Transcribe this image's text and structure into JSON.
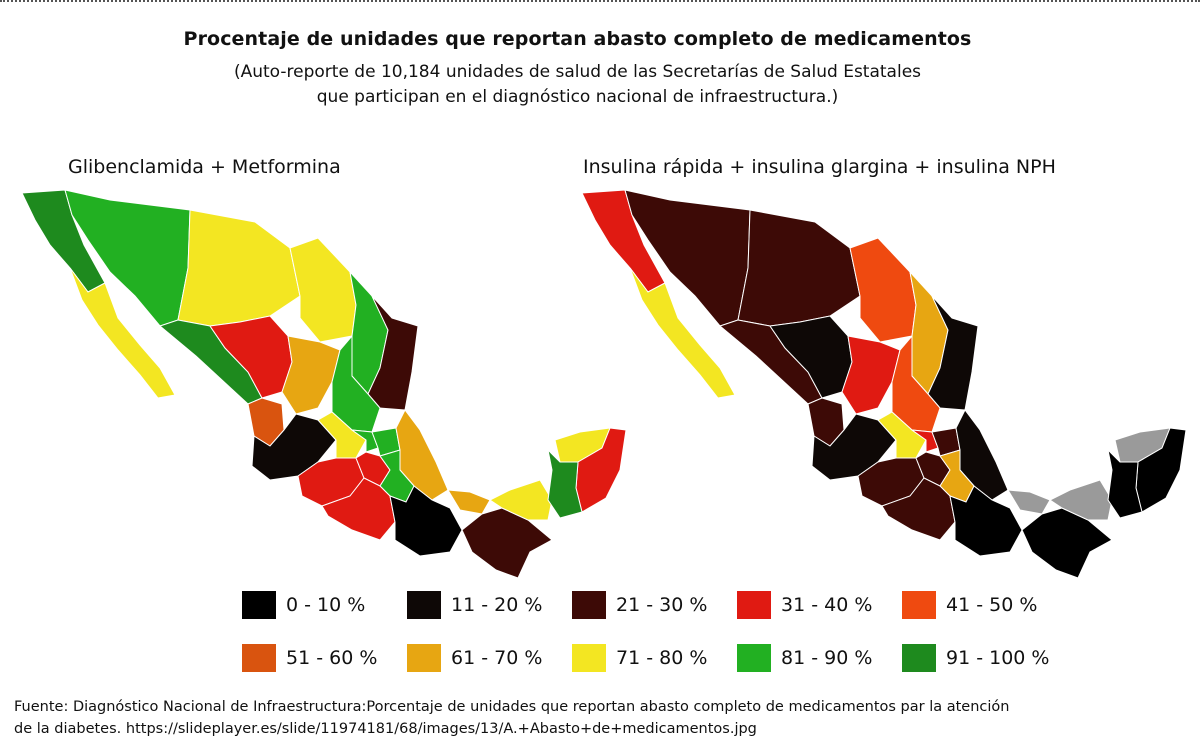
{
  "title": "Procentaje de unidades que reportan abasto completo de medicamentos",
  "subtitle_line1": "(Auto-reporte de 10,184 unidades de salud de las Secretarías de Salud Estatales",
  "subtitle_line2": "que participan en el diagnóstico nacional de infraestructura.)",
  "maps": {
    "left_title": "Glibenclamida + Metformina",
    "right_title": "Insulina rápida + insulina glargina + insulina NPH"
  },
  "legend": [
    {
      "label": "0 - 10 %",
      "color": "#000000"
    },
    {
      "label": "11 - 20 %",
      "color": "#0e0806"
    },
    {
      "label": "21 - 30 %",
      "color": "#3d0a06"
    },
    {
      "label": "31 - 40 %",
      "color": "#e01a12"
    },
    {
      "label": "41 - 50 %",
      "color": "#ef4a10"
    },
    {
      "label": "51 - 60 %",
      "color": "#d9540f"
    },
    {
      "label": "61 - 70 %",
      "color": "#e7a612"
    },
    {
      "label": "71 - 80 %",
      "color": "#f3e622"
    },
    {
      "label": "81 - 90 %",
      "color": "#22b022"
    },
    {
      "label": "91 - 100 %",
      "color": "#1e8a1e"
    }
  ],
  "no_data_color": "#9a9a9a",
  "source_line1": "Fuente: Diagnóstico Nacional de Infraestructura:Porcentaje de unidades que reportan abasto completo de medicamentos par la atención",
  "source_line2": "de la diabetes. https://slideplayer.es/slide/11974181/68/images/13/A.+Abasto+de+medicamentos.jpg"
}
